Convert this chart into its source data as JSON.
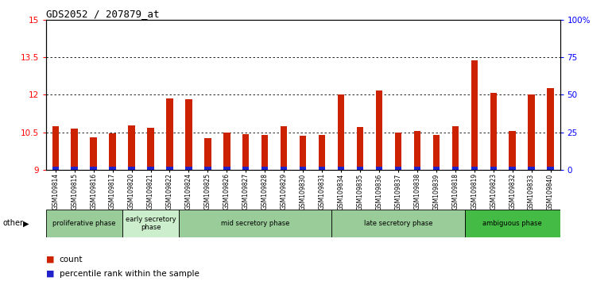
{
  "title": "GDS2052 / 207879_at",
  "samples": [
    "GSM109814",
    "GSM109815",
    "GSM109816",
    "GSM109817",
    "GSM109820",
    "GSM109821",
    "GSM109822",
    "GSM109824",
    "GSM109825",
    "GSM109826",
    "GSM109827",
    "GSM109828",
    "GSM109829",
    "GSM109830",
    "GSM109831",
    "GSM109834",
    "GSM109835",
    "GSM109836",
    "GSM109837",
    "GSM109838",
    "GSM109839",
    "GSM109818",
    "GSM109819",
    "GSM109823",
    "GSM109832",
    "GSM109833",
    "GSM109840"
  ],
  "count_values": [
    10.75,
    10.65,
    10.3,
    10.45,
    10.77,
    10.67,
    11.85,
    11.82,
    10.28,
    10.5,
    10.44,
    10.4,
    10.75,
    10.38,
    10.4,
    12.0,
    10.72,
    12.18,
    10.5,
    10.55,
    10.4,
    10.76,
    13.38,
    12.08,
    10.55,
    12.0,
    12.28
  ],
  "percentile_values": [
    0.12,
    0.12,
    0.12,
    0.12,
    0.12,
    0.12,
    0.12,
    0.12,
    0.12,
    0.12,
    0.12,
    0.12,
    0.12,
    0.12,
    0.12,
    0.12,
    0.12,
    0.12,
    0.12,
    0.12,
    0.12,
    0.12,
    0.12,
    0.12,
    0.12,
    0.12,
    0.12
  ],
  "y_min": 9,
  "y_max": 15,
  "y_ticks": [
    9,
    10.5,
    12,
    13.5,
    15
  ],
  "y_right_ticks": [
    0,
    25,
    50,
    75,
    100
  ],
  "y_right_labels": [
    "0",
    "25",
    "50",
    "75",
    "100%"
  ],
  "bar_color": "#cc2200",
  "percentile_color": "#2222cc",
  "phases": [
    {
      "label": "proliferative phase",
      "start": 0,
      "end": 4,
      "color": "#99cc99"
    },
    {
      "label": "early secretory\nphase",
      "start": 4,
      "end": 7,
      "color": "#cceecc"
    },
    {
      "label": "mid secretory phase",
      "start": 7,
      "end": 15,
      "color": "#99cc99"
    },
    {
      "label": "late secretory phase",
      "start": 15,
      "end": 22,
      "color": "#99cc99"
    },
    {
      "label": "ambiguous phase",
      "start": 22,
      "end": 27,
      "color": "#44bb44"
    }
  ],
  "bar_width": 0.35,
  "tick_bg_color": "#cccccc"
}
